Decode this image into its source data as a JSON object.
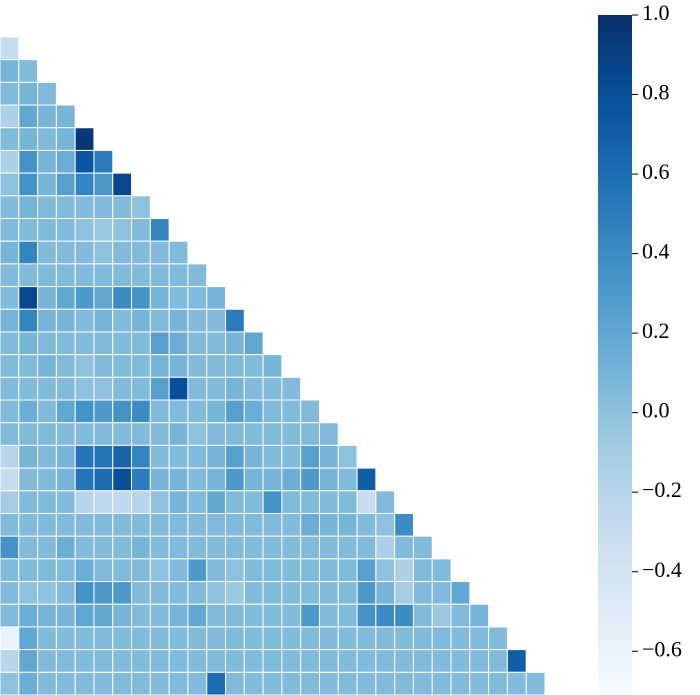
{
  "chart_data": {
    "type": "heatmap",
    "layout": "lower-triangle",
    "color_stops": [
      "#f7fbff",
      "#deebf7",
      "#c6dbef",
      "#9ecae1",
      "#6baed6",
      "#4292c6",
      "#2171b5",
      "#08519c",
      "#08306b"
    ],
    "clim": [
      -0.71,
      1.0
    ],
    "cticks": [
      {
        "value": -0.6,
        "label": "−0.6"
      },
      {
        "value": -0.4,
        "label": "−0.4"
      },
      {
        "value": -0.2,
        "label": "−0.2"
      },
      {
        "value": 0,
        "label": "0.0"
      },
      0.2,
      0.4,
      0.6,
      0.8,
      {
        "value": 1,
        "label": "1.0"
      }
    ],
    "rows": [
      [
        -0.3
      ],
      [
        0.1,
        0.05
      ],
      [
        0.05,
        0.1,
        0.05
      ],
      [
        -0.15,
        0.2,
        0.1,
        0.1
      ],
      [
        0.05,
        0.1,
        0.05,
        0.1,
        0.95
      ],
      [
        -0.15,
        0.35,
        0.1,
        0.15,
        0.75,
        0.5
      ],
      [
        0.0,
        0.35,
        0.1,
        0.25,
        0.45,
        0.3,
        0.85
      ],
      [
        0.05,
        0.1,
        0.05,
        0.05,
        0.05,
        0.05,
        0.05,
        0.0
      ],
      [
        0.05,
        0.05,
        0.05,
        0.05,
        0.0,
        -0.05,
        0.0,
        0.05,
        0.45
      ],
      [
        0.1,
        0.45,
        0.05,
        0.05,
        0.05,
        0.0,
        0.05,
        0.05,
        0.05,
        0.05
      ],
      [
        0.05,
        0.05,
        0.05,
        0.05,
        0.05,
        0.05,
        0.05,
        0.05,
        0.05,
        0.05,
        0.05
      ],
      [
        0.05,
        0.85,
        0.1,
        0.2,
        0.3,
        0.2,
        0.4,
        0.35,
        0.1,
        0.05,
        0.05,
        0.1
      ],
      [
        0.1,
        0.45,
        0.1,
        0.1,
        0.05,
        0.1,
        0.05,
        0.1,
        0.05,
        0.1,
        0.05,
        0.05,
        0.5
      ],
      [
        0.05,
        0.1,
        0.05,
        0.05,
        0.05,
        0.05,
        0.05,
        0.05,
        0.25,
        0.15,
        0.05,
        0.05,
        0.1,
        0.2
      ],
      [
        0.05,
        0.05,
        0.1,
        0.05,
        0.0,
        0.05,
        0.05,
        0.05,
        0.1,
        0.1,
        0.05,
        0.05,
        0.05,
        0.05,
        0.1
      ],
      [
        0.05,
        0.05,
        0.05,
        0.05,
        0.0,
        0.0,
        0.05,
        0.05,
        0.25,
        0.8,
        0.05,
        0.05,
        0.1,
        0.05,
        0.05,
        0.05
      ],
      [
        0.05,
        0.15,
        0.05,
        0.2,
        0.35,
        0.3,
        0.35,
        0.4,
        0.05,
        0.05,
        0.05,
        0.1,
        0.25,
        0.15,
        0.05,
        0.05,
        0.05
      ],
      [
        0.05,
        0.05,
        0.05,
        0.05,
        0.05,
        0.05,
        0.05,
        0.05,
        0.05,
        0.1,
        0.0,
        0.05,
        0.05,
        0.05,
        0.05,
        0.05,
        0.05,
        0.05
      ],
      [
        -0.2,
        0.1,
        0.05,
        0.1,
        0.55,
        0.55,
        0.65,
        0.45,
        0.05,
        0.05,
        0.05,
        0.1,
        0.25,
        0.1,
        0.05,
        0.05,
        0.25,
        0.1,
        0.0
      ],
      [
        -0.3,
        0.05,
        0.05,
        0.1,
        0.55,
        0.6,
        0.8,
        0.5,
        0.1,
        0.1,
        0.05,
        0.1,
        0.3,
        0.1,
        0.1,
        0.15,
        0.3,
        0.1,
        0.05,
        0.7
      ],
      [
        -0.1,
        0.05,
        0.05,
        0.05,
        -0.2,
        -0.25,
        -0.25,
        -0.2,
        0.0,
        0.1,
        0.05,
        0.2,
        0.05,
        0.05,
        0.35,
        0.05,
        0.05,
        0.05,
        0.05,
        -0.3,
        0.05
      ],
      [
        0.05,
        0.05,
        0.05,
        0.05,
        0.05,
        0.05,
        0.05,
        0.05,
        0.05,
        0.05,
        0.05,
        0.05,
        0.05,
        0.05,
        0.05,
        0.05,
        0.15,
        0.1,
        0.1,
        0.05,
        0.0,
        0.4
      ],
      [
        0.35,
        0.05,
        0.05,
        0.15,
        0.05,
        0.05,
        0.05,
        0.1,
        0.05,
        0.05,
        0.05,
        0.05,
        0.05,
        0.05,
        0.05,
        0.05,
        0.05,
        0.05,
        0.05,
        0.05,
        -0.15,
        0.05,
        0.05
      ],
      [
        0.05,
        0.05,
        0.05,
        0.05,
        0.15,
        0.05,
        0.05,
        0.05,
        0.0,
        0.05,
        0.3,
        0.05,
        0.0,
        0.05,
        0.05,
        0.05,
        0.05,
        0.05,
        0.05,
        0.25,
        0.0,
        -0.15,
        0.05,
        0.05
      ],
      [
        0.05,
        0.0,
        0.0,
        0.05,
        0.35,
        0.3,
        0.3,
        0.05,
        0.05,
        0.05,
        0.05,
        0.0,
        -0.05,
        0.05,
        0.05,
        0.05,
        0.05,
        0.05,
        0.05,
        0.3,
        0.1,
        -0.1,
        0.05,
        0.05,
        0.2
      ],
      [
        0.05,
        0.15,
        0.1,
        0.1,
        0.2,
        0.2,
        0.1,
        0.05,
        0.05,
        0.1,
        0.2,
        0.05,
        0.05,
        0.05,
        0.05,
        0.05,
        0.3,
        0.05,
        0.05,
        0.35,
        0.4,
        0.4,
        0.05,
        -0.05,
        0.05,
        0.1
      ],
      [
        -0.6,
        0.2,
        0.05,
        0.05,
        0.05,
        0.05,
        0.05,
        0.05,
        0.05,
        0.05,
        0.05,
        0.05,
        0.05,
        0.05,
        0.05,
        0.05,
        0.05,
        0.05,
        0.05,
        0.05,
        0.05,
        0.05,
        0.05,
        0.05,
        0.05,
        0.05,
        0.05
      ],
      [
        -0.2,
        0.2,
        0.05,
        0.05,
        0.05,
        0.05,
        0.05,
        0.05,
        0.05,
        0.05,
        0.05,
        0.05,
        0.05,
        0.05,
        0.05,
        0.05,
        0.05,
        0.05,
        0.05,
        0.05,
        0.05,
        0.05,
        0.05,
        0.05,
        0.05,
        0.05,
        0.05,
        0.7
      ],
      [
        0.0,
        0.15,
        0.05,
        0.05,
        0.05,
        0.05,
        0.05,
        0.05,
        0.05,
        0.05,
        0.05,
        0.6,
        0.05,
        0.05,
        0.05,
        0.05,
        0.05,
        0.05,
        0.05,
        0.05,
        0.05,
        0.05,
        0.05,
        0.05,
        0.05,
        0.05,
        0.05,
        0.05,
        0.05
      ]
    ]
  }
}
